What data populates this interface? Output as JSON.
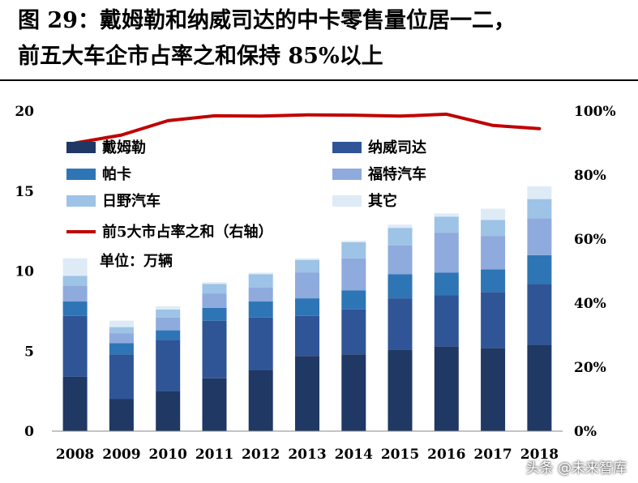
{
  "title": {
    "line1": "图 29：戴姆勒和纳威司达的中卡零售量位居一二，",
    "line2": "前五大车企市占率之和保持 85%以上"
  },
  "unit_label": "单位：万辆",
  "watermark": "头条 @未来智库",
  "colors": {
    "戴姆勒": "#1f3864",
    "纳威司达": "#2f5597",
    "帕卡": "#2e75b6",
    "福特汽车": "#8faadc",
    "日野汽车": "#9dc3e6",
    "其它": "#deebf7",
    "line": "#c00000"
  },
  "chart_data": {
    "type": "bar",
    "stacked": true,
    "categories": [
      "2008",
      "2009",
      "2010",
      "2011",
      "2012",
      "2013",
      "2014",
      "2015",
      "2016",
      "2017",
      "2018"
    ],
    "series": [
      {
        "name": "戴姆勒",
        "values": [
          3.4,
          2.0,
          2.5,
          3.3,
          3.8,
          4.7,
          4.8,
          5.1,
          5.3,
          5.2,
          5.4
        ]
      },
      {
        "name": "纳威司达",
        "values": [
          3.8,
          2.8,
          3.2,
          3.6,
          3.3,
          2.5,
          2.8,
          3.2,
          3.2,
          3.5,
          3.8
        ]
      },
      {
        "name": "帕卡",
        "values": [
          0.9,
          0.7,
          0.6,
          0.8,
          1.0,
          1.1,
          1.2,
          1.5,
          1.4,
          1.4,
          1.8
        ]
      },
      {
        "name": "福特汽车",
        "values": [
          1.0,
          0.6,
          0.8,
          0.9,
          0.9,
          1.6,
          2.0,
          1.8,
          2.5,
          2.1,
          2.3
        ]
      },
      {
        "name": "日野汽车",
        "values": [
          0.6,
          0.4,
          0.5,
          0.6,
          0.8,
          0.8,
          1.0,
          1.1,
          1.0,
          1.0,
          1.2
        ]
      },
      {
        "name": "其它",
        "values": [
          1.1,
          0.4,
          0.2,
          0.1,
          0.1,
          0.1,
          0.1,
          0.2,
          0.2,
          0.7,
          0.8
        ]
      }
    ],
    "line_series": {
      "name": "前5大市占率之和（右轴）",
      "values": [
        0.9,
        0.925,
        0.97,
        0.985,
        0.984,
        0.988,
        0.987,
        0.984,
        0.99,
        0.955,
        0.945
      ]
    },
    "y_ticks": [
      "0",
      "5",
      "10",
      "15",
      "20"
    ],
    "ylim": [
      0,
      20
    ],
    "y2_ticks": [
      "0%",
      "20%",
      "40%",
      "60%",
      "80%",
      "100%"
    ],
    "y2lim": [
      0,
      1
    ],
    "legend_position": "top-left",
    "grid": false
  }
}
